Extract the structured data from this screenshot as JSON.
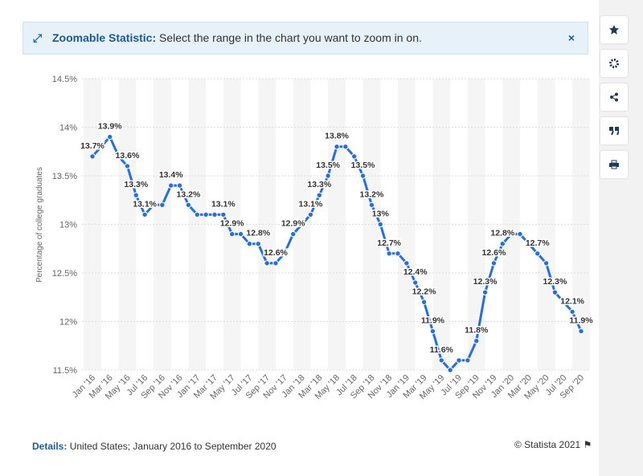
{
  "header": {
    "label": "Zoomable Statistic:",
    "text": "Select the range in the chart you want to zoom in on."
  },
  "chart_data": {
    "type": "line",
    "y_label": "Percentage of college graduates",
    "categories": [
      "Jan '16",
      null,
      "Mar '16",
      null,
      "May '16",
      null,
      "Jul '16",
      null,
      "Sep '16",
      null,
      "Nov '16",
      null,
      "Jan '17",
      null,
      "Mar '17",
      null,
      "May '17",
      null,
      "Jul '17",
      null,
      "Sep '17",
      null,
      "Nov '17",
      null,
      "Jan '18",
      null,
      "Mar '18",
      null,
      "May '18",
      null,
      "Jul '18",
      null,
      "Sep '18",
      null,
      "Nov '18",
      null,
      "Jan '19",
      null,
      "Mar '19",
      null,
      "May '19",
      null,
      "Jul '19",
      null,
      "Sep '19",
      null,
      "Nov '19",
      null,
      "Jan '20",
      null,
      "Mar '20",
      null,
      "May '20",
      null,
      "Jul '20",
      null,
      "Sep '20"
    ],
    "values": [
      13.7,
      13.8,
      13.9,
      13.7,
      13.6,
      13.3,
      13.1,
      13.2,
      13.2,
      13.4,
      13.4,
      13.2,
      13.1,
      13.1,
      13.1,
      13.1,
      12.9,
      12.9,
      12.8,
      12.8,
      12.6,
      12.6,
      12.7,
      12.9,
      13.0,
      13.1,
      13.3,
      13.5,
      13.8,
      13.8,
      13.7,
      13.5,
      13.2,
      13.0,
      12.7,
      12.7,
      12.6,
      12.4,
      12.2,
      11.9,
      11.6,
      11.5,
      11.6,
      11.6,
      11.8,
      12.3,
      12.6,
      12.8,
      12.9,
      12.9,
      12.8,
      12.7,
      12.6,
      12.3,
      12.2,
      12.1,
      11.9
    ],
    "value_labels": [
      "13.7%",
      null,
      "13.9%",
      null,
      "13.6%",
      "13.3%",
      "13.1%",
      null,
      null,
      "13.4%",
      null,
      "13.2%",
      null,
      null,
      null,
      "13.1%",
      "12.9%",
      null,
      null,
      "12.8%",
      null,
      "12.6%",
      null,
      "12.9%",
      null,
      "13.1%",
      "13.3%",
      "13.5%",
      "13.8%",
      null,
      null,
      "13.5%",
      "13.2%",
      "13%",
      "12.7%",
      null,
      null,
      "12.4%",
      "12.2%",
      "11.9%",
      "11.6%",
      null,
      null,
      null,
      "11.8%",
      "12.3%",
      "12.6%",
      "12.8%",
      null,
      null,
      null,
      "12.7%",
      null,
      "12.3%",
      null,
      "12.1%",
      "11.9%"
    ],
    "color": "#2a6fd6",
    "ylim": [
      11.5,
      14.5
    ],
    "yticks": [
      {
        "value": 11.5,
        "label": "11.5%"
      },
      {
        "value": 12,
        "label": "12%"
      },
      {
        "value": 12.5,
        "label": "12.5%"
      },
      {
        "value": 13,
        "label": "13%"
      },
      {
        "value": 13.5,
        "label": "13.5%"
      },
      {
        "value": 14,
        "label": "14%"
      },
      {
        "value": 14.5,
        "label": "14.5%"
      }
    ],
    "grid": true
  },
  "footer": {
    "label": "Details:",
    "text": "United States; January 2016 to September 2020",
    "copyright": "© Statista 2021"
  }
}
